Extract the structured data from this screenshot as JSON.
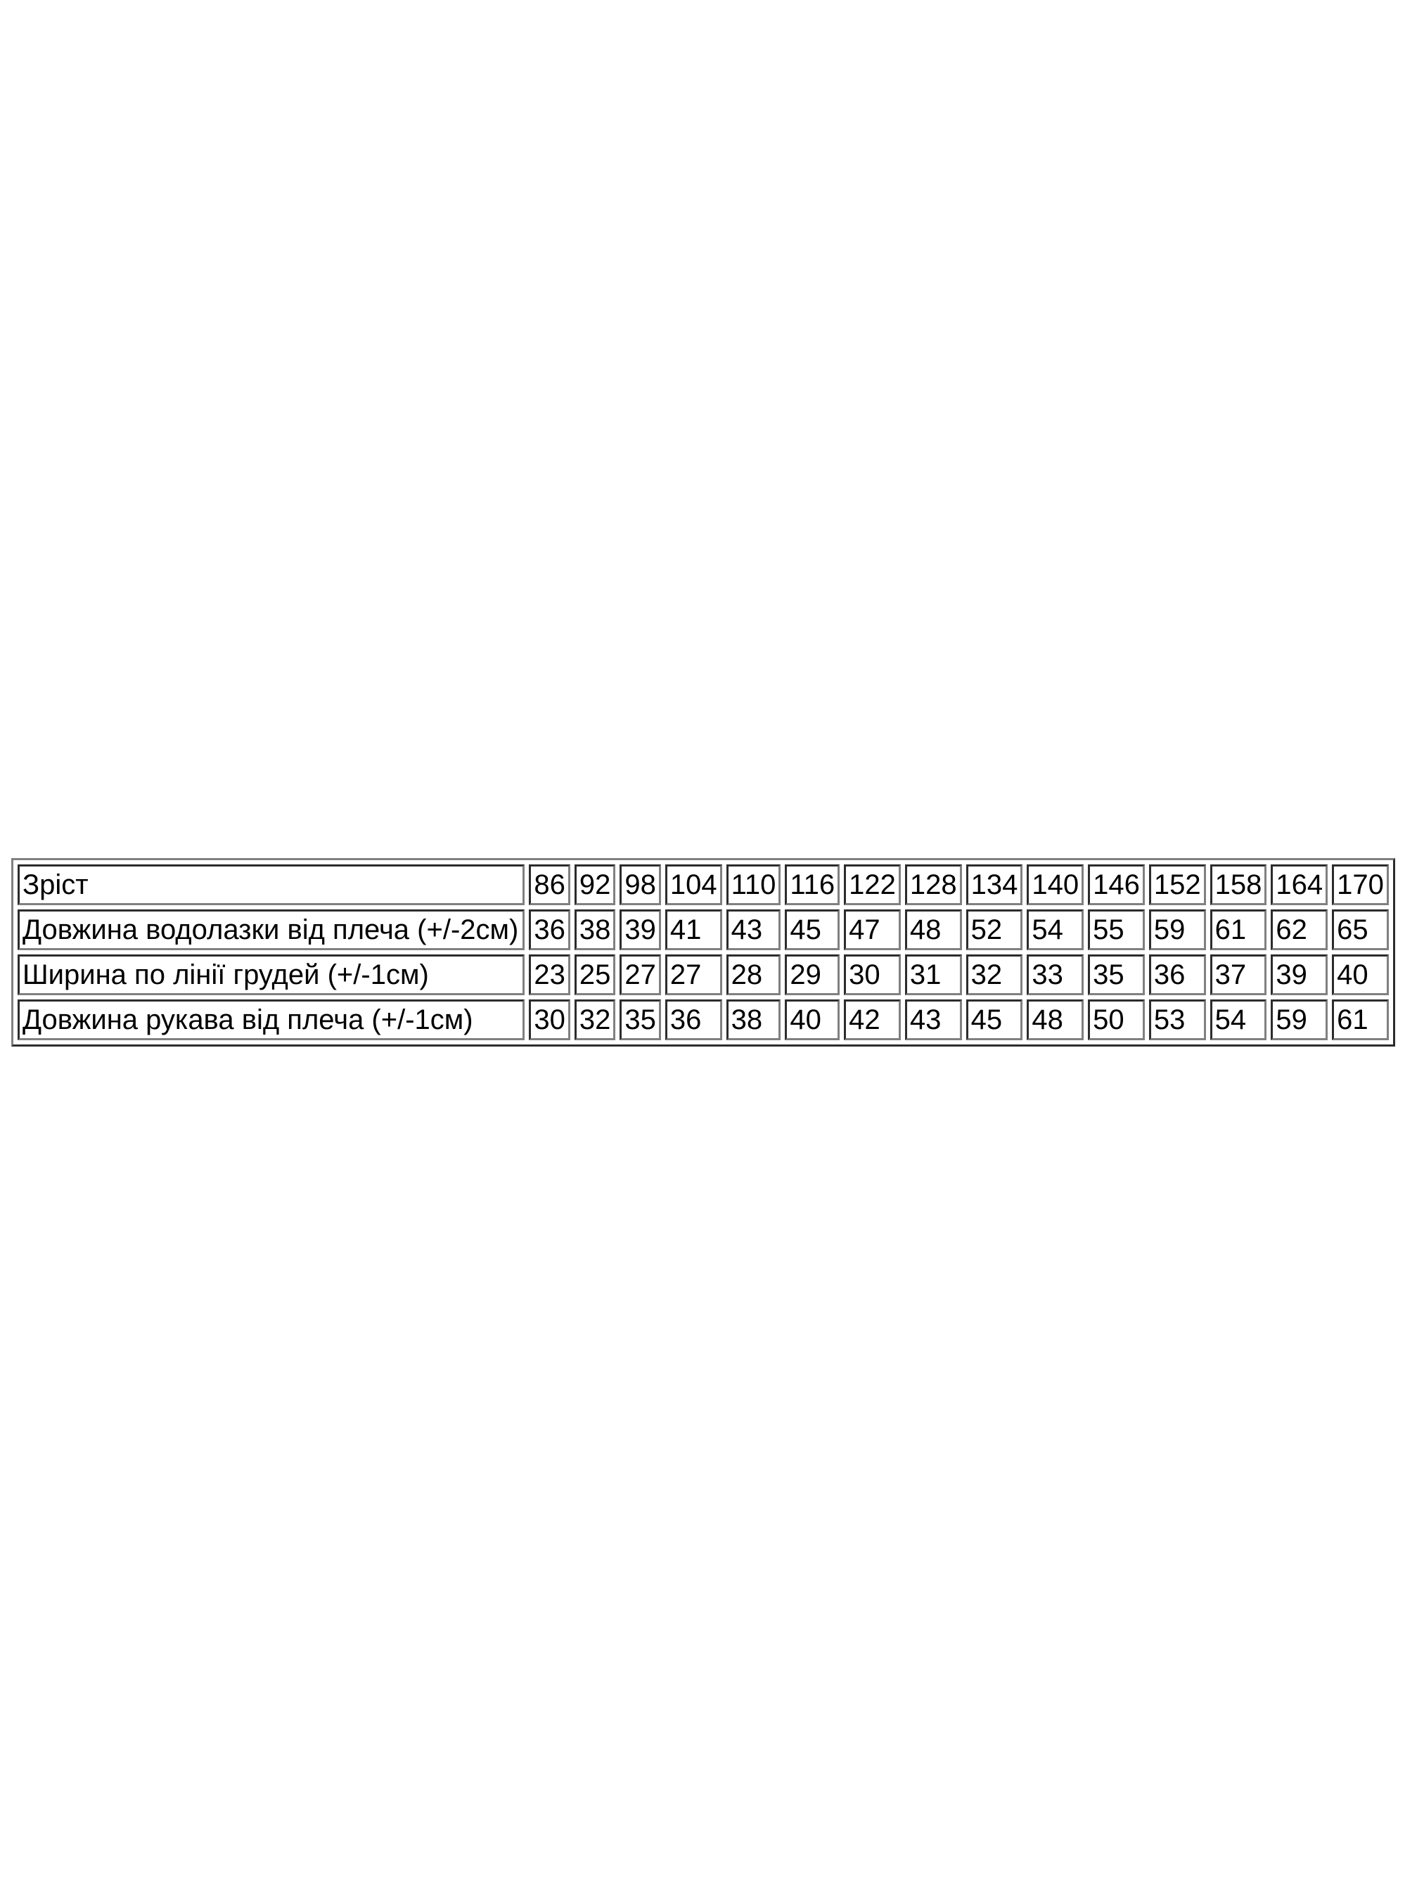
{
  "page": {
    "background": "#ffffff"
  },
  "table": {
    "border_color": "#808080",
    "text_color": "#000000",
    "rows": [
      {
        "label": "Зріст",
        "values": [
          "86",
          "92",
          "98",
          "104",
          "110",
          "116",
          "122",
          "128",
          "134",
          "140",
          "146",
          "152",
          "158",
          "164",
          "170"
        ]
      },
      {
        "label": "Довжина водолазки від плеча (+/-2см)",
        "values": [
          "36",
          "38",
          "39",
          "41",
          "43",
          "45",
          "47",
          "48",
          "52",
          "54",
          "55",
          "59",
          "61",
          "62",
          "65"
        ]
      },
      {
        "label": "Ширина по лінії грудей (+/-1см)",
        "values": [
          "23",
          "25",
          "27",
          "27",
          "28",
          "29",
          "30",
          "31",
          "32",
          "33",
          "35",
          "36",
          "37",
          "39",
          "40"
        ]
      },
      {
        "label": "Довжина рукава від плеча (+/-1см)",
        "values": [
          "30",
          "32",
          "35",
          "36",
          "38",
          "40",
          "42",
          "43",
          "45",
          "48",
          "50",
          "53",
          "54",
          "59",
          "61"
        ]
      }
    ]
  }
}
